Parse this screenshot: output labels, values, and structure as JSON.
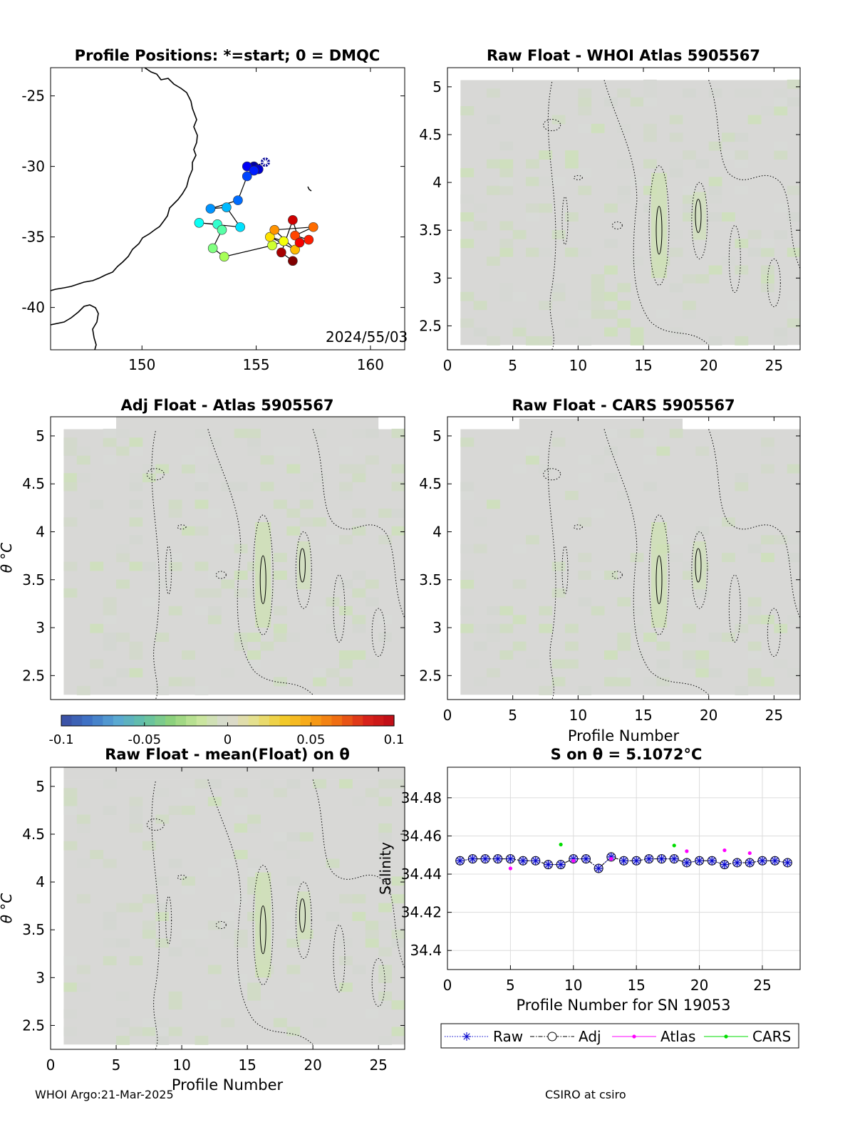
{
  "footer": {
    "left": "WHOI Argo:21-Mar-2025",
    "right": "CSIRO at csiro"
  },
  "chart_data": [
    {
      "id": "map",
      "type": "scatter",
      "title": "Profile Positions: *=start; 0 = DMQC",
      "annotation": "2024/55/03",
      "xlim": [
        146,
        161.5
      ],
      "ylim": [
        -43,
        -23
      ],
      "xticks": [
        150,
        155,
        160
      ],
      "yticks": [
        -25,
        -30,
        -35,
        -40
      ],
      "points": [
        {
          "x": 155.4,
          "y": -29.7,
          "profile": 1
        },
        {
          "x": 154.9,
          "y": -30.0,
          "profile": 2
        },
        {
          "x": 155.1,
          "y": -30.2,
          "profile": 3
        },
        {
          "x": 154.6,
          "y": -30.0,
          "profile": 4
        },
        {
          "x": 154.9,
          "y": -30.3,
          "profile": 5
        },
        {
          "x": 154.6,
          "y": -30.7,
          "profile": 6
        },
        {
          "x": 154.2,
          "y": -32.4,
          "profile": 7
        },
        {
          "x": 153.0,
          "y": -33.0,
          "profile": 8
        },
        {
          "x": 153.7,
          "y": -32.9,
          "profile": 9
        },
        {
          "x": 154.3,
          "y": -34.3,
          "profile": 10
        },
        {
          "x": 152.5,
          "y": -34.0,
          "profile": 11
        },
        {
          "x": 153.3,
          "y": -34.1,
          "profile": 12
        },
        {
          "x": 153.5,
          "y": -34.5,
          "profile": 13
        },
        {
          "x": 153.1,
          "y": -35.8,
          "profile": 14
        },
        {
          "x": 153.6,
          "y": -36.4,
          "profile": 15
        },
        {
          "x": 155.7,
          "y": -35.6,
          "profile": 16
        },
        {
          "x": 156.2,
          "y": -35.3,
          "profile": 17
        },
        {
          "x": 155.6,
          "y": -35.0,
          "profile": 18
        },
        {
          "x": 156.7,
          "y": -35.9,
          "profile": 19
        },
        {
          "x": 155.8,
          "y": -34.5,
          "profile": 20
        },
        {
          "x": 157.5,
          "y": -34.3,
          "profile": 21
        },
        {
          "x": 156.7,
          "y": -34.9,
          "profile": 22
        },
        {
          "x": 157.3,
          "y": -35.2,
          "profile": 23
        },
        {
          "x": 156.9,
          "y": -35.4,
          "profile": 24
        },
        {
          "x": 156.6,
          "y": -33.8,
          "profile": 25
        },
        {
          "x": 156.1,
          "y": -36.1,
          "profile": 26
        },
        {
          "x": 156.6,
          "y": -36.7,
          "profile": 27
        }
      ]
    },
    {
      "id": "raw-whoi",
      "type": "heatmap",
      "title": "Raw Float - WHOI Atlas  5905567",
      "xlim": [
        0,
        27
      ],
      "ylim": [
        2.25,
        5.2
      ],
      "xticks": [
        0,
        5,
        10,
        15,
        20,
        25
      ],
      "yticks": [
        2.5,
        3,
        3.5,
        4,
        4.5,
        5
      ],
      "xlabel": "",
      "ylabel": ""
    },
    {
      "id": "adj-atlas",
      "type": "heatmap",
      "title": "Adj Float - Atlas  5905567",
      "xlim": [
        0,
        27
      ],
      "ylim": [
        2.25,
        5.2
      ],
      "xticks": [],
      "yticks": [
        2.5,
        3,
        3.5,
        4,
        4.5,
        5
      ],
      "xlabel": "",
      "ylabel": "θ °C"
    },
    {
      "id": "raw-cars",
      "type": "heatmap",
      "title": "Raw Float - CARS  5905567",
      "xlim": [
        0,
        27
      ],
      "ylim": [
        2.25,
        5.2
      ],
      "xticks": [
        0,
        5,
        10,
        15,
        20,
        25
      ],
      "yticks": [
        2.5,
        3,
        3.5,
        4,
        4.5,
        5
      ],
      "xlabel": "Profile Number",
      "ylabel": ""
    },
    {
      "id": "raw-mean",
      "type": "heatmap",
      "title": "Raw Float - mean(Float) on θ",
      "xlim": [
        0,
        27
      ],
      "ylim": [
        2.25,
        5.2
      ],
      "xticks": [
        0,
        5,
        10,
        15,
        20,
        25
      ],
      "yticks": [
        2.5,
        3,
        3.5,
        4,
        4.5,
        5
      ],
      "xlabel": "Profile Number",
      "ylabel": "θ °C"
    },
    {
      "id": "colorbar",
      "type": "heatmap",
      "range": [
        -0.1,
        0.1
      ],
      "ticks": [
        "-0.1",
        "-0.05",
        "0",
        "0.05",
        "0.1"
      ],
      "colormap": [
        "#3a4ba0",
        "#3f73c6",
        "#59a7d4",
        "#63c1a5",
        "#8fd27a",
        "#c9e69b",
        "#d9d9d6",
        "#e5e08a",
        "#f2cc2a",
        "#f8a315",
        "#ef6a12",
        "#d9241a",
        "#bd0a16"
      ]
    },
    {
      "id": "salinity",
      "type": "scatter",
      "title": "S on θ = 5.1072°C",
      "xlabel": "Profile Number for SN 19053",
      "ylabel": "Salinity",
      "xlim": [
        0,
        28
      ],
      "ylim": [
        34.39,
        34.496
      ],
      "xticks": [
        0,
        5,
        10,
        15,
        20,
        25
      ],
      "yticks": [
        34.4,
        34.42,
        34.44,
        34.46,
        34.48
      ],
      "grid": true,
      "legend": {
        "position": "bottom",
        "entries": [
          "Raw",
          "Adj",
          "Atlas",
          "CARS"
        ]
      },
      "series": [
        {
          "name": "Raw",
          "color": "#0000cc",
          "x": [
            1,
            2,
            3,
            4,
            5,
            6,
            7,
            8,
            9,
            10,
            11,
            12,
            13,
            14,
            15,
            16,
            17,
            18,
            19,
            20,
            21,
            22,
            23,
            24,
            25,
            26,
            27
          ],
          "y": [
            34.447,
            34.448,
            34.448,
            34.448,
            34.448,
            34.447,
            34.447,
            34.445,
            34.445,
            34.448,
            34.448,
            34.443,
            34.449,
            34.447,
            34.447,
            34.448,
            34.448,
            34.448,
            34.446,
            34.447,
            34.447,
            34.445,
            34.446,
            34.446,
            34.447,
            34.447,
            34.446
          ]
        },
        {
          "name": "Adj",
          "color": "#000000",
          "x": [
            1,
            2,
            3,
            4,
            5,
            6,
            7,
            8,
            9,
            10,
            11,
            12,
            13,
            14,
            15,
            16,
            17,
            18,
            19,
            20,
            21,
            22,
            23,
            24,
            25,
            26,
            27
          ],
          "y": [
            34.447,
            34.448,
            34.448,
            34.448,
            34.448,
            34.447,
            34.447,
            34.445,
            34.445,
            34.448,
            34.448,
            34.443,
            34.449,
            34.447,
            34.447,
            34.448,
            34.448,
            34.448,
            34.446,
            34.447,
            34.447,
            34.445,
            34.446,
            34.446,
            34.447,
            34.447,
            34.446
          ]
        },
        {
          "name": "Atlas",
          "color": "#ff00ff",
          "x": [
            5,
            10,
            13,
            19,
            22,
            24
          ],
          "y": [
            34.443,
            34.447,
            34.448,
            34.452,
            34.4525,
            34.451
          ]
        },
        {
          "name": "CARS",
          "color": "#00dd00",
          "x": [
            9,
            18
          ],
          "y": [
            34.4555,
            34.455
          ]
        }
      ]
    }
  ]
}
